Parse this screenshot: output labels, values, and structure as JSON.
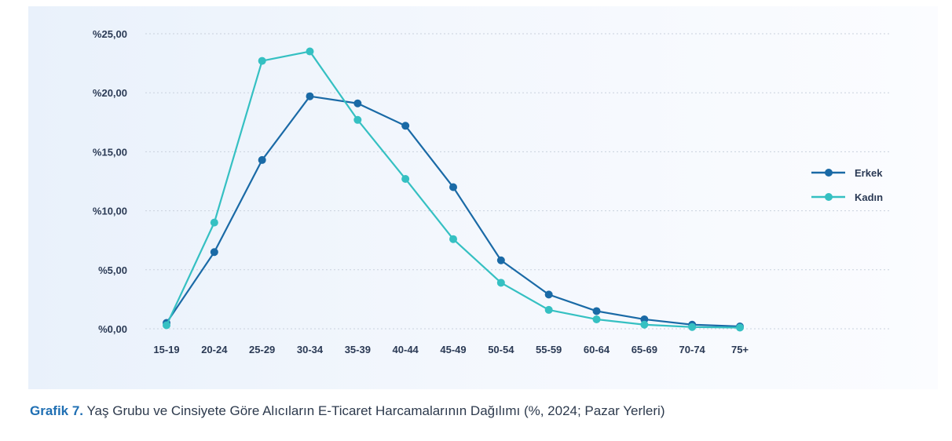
{
  "chart_data": {
    "type": "line",
    "categories": [
      "15-19",
      "20-24",
      "25-29",
      "30-34",
      "35-39",
      "40-44",
      "45-49",
      "50-54",
      "55-59",
      "60-64",
      "65-69",
      "70-74",
      "75+"
    ],
    "y_tick_labels": [
      "%0,00",
      "%5,00",
      "%10,00",
      "%15,00",
      "%20,00",
      "%25,00"
    ],
    "ylim": [
      0,
      25
    ],
    "y_ticks": [
      0,
      5,
      10,
      15,
      20,
      25
    ],
    "grid": true,
    "legend_position": "right",
    "series": [
      {
        "name": "Erkek",
        "color": "#1a6aa6",
        "values": [
          0.5,
          6.5,
          14.3,
          19.7,
          19.1,
          17.2,
          12.0,
          5.8,
          2.9,
          1.5,
          0.8,
          0.35,
          0.2
        ]
      },
      {
        "name": "Kadın",
        "color": "#35c0c2",
        "values": [
          0.3,
          9.0,
          22.7,
          23.5,
          17.7,
          12.7,
          7.6,
          3.9,
          1.6,
          0.8,
          0.35,
          0.15,
          0.1
        ]
      }
    ]
  },
  "caption": {
    "lead": "Grafik 7.",
    "text": " Yaş Grubu ve Cinsiyete Göre Alıcıların E-Ticaret Harcamalarının Dağılımı (%, 2024; Pazar Yerleri)"
  }
}
